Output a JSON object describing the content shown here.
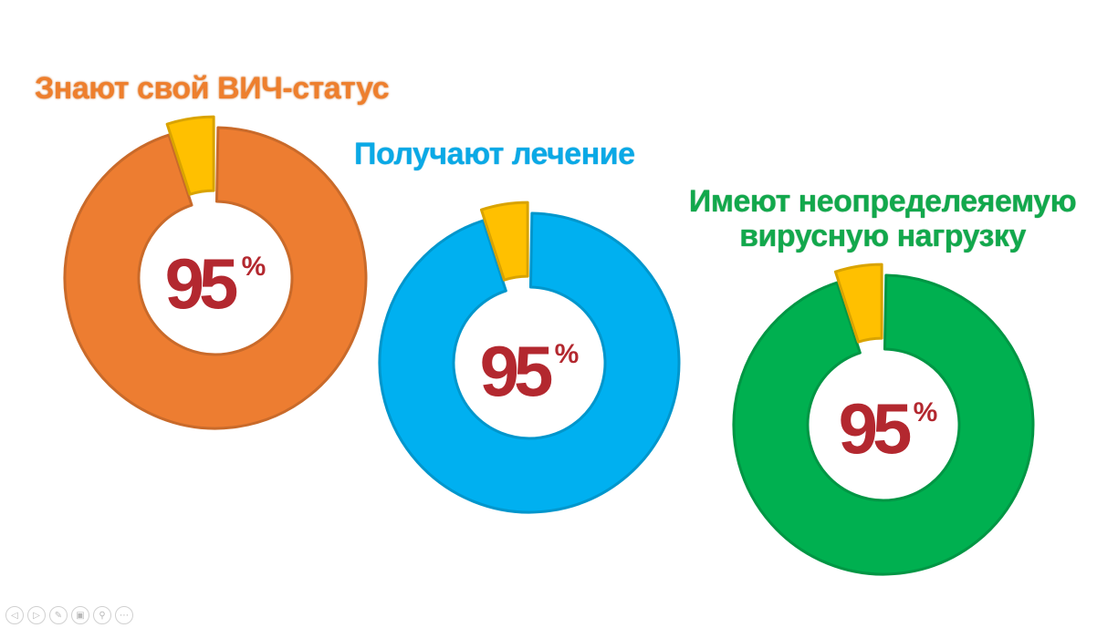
{
  "chart_data": [
    {
      "type": "pie",
      "title": "Знают свой ВИЧ-статус",
      "values": [
        95,
        5
      ],
      "value_label": "95",
      "unit": "%",
      "colors": [
        "#ed7d31",
        "#ffc000"
      ]
    },
    {
      "type": "pie",
      "title": "Получают лечение",
      "values": [
        95,
        5
      ],
      "value_label": "95",
      "unit": "%",
      "colors": [
        "#00b0f0",
        "#ffc000"
      ]
    },
    {
      "type": "pie",
      "title": "Имеют неопределеяемую вирусную нагрузку",
      "values": [
        95,
        5
      ],
      "value_label": "95",
      "unit": "%",
      "colors": [
        "#00b050",
        "#ffc000"
      ]
    }
  ],
  "nav": {
    "buttons": [
      {
        "icon": "prev-icon",
        "glyph": "◁"
      },
      {
        "icon": "next-icon",
        "glyph": "▷"
      },
      {
        "icon": "pen-icon",
        "glyph": "✎"
      },
      {
        "icon": "slides-icon",
        "glyph": "▣"
      },
      {
        "icon": "zoom-icon",
        "glyph": "⚲"
      },
      {
        "icon": "more-icon",
        "glyph": "⋯"
      }
    ]
  }
}
